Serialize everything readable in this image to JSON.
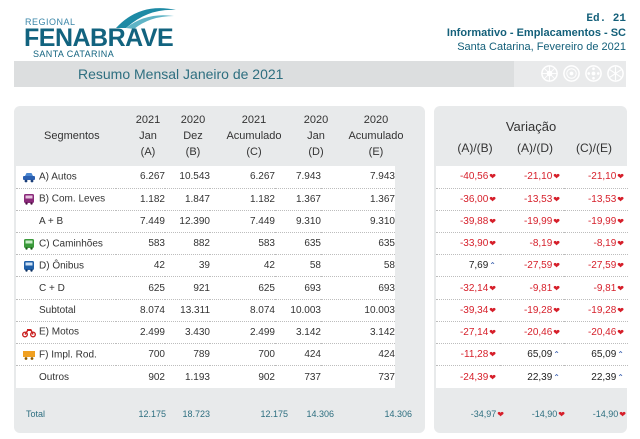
{
  "header": {
    "logo_regional": "REGIONAL",
    "logo_brand": "FENABRAVE",
    "logo_state": "SANTA CATARINA",
    "edition": "Ed. 21",
    "info": "Informativo - Emplacamentos - SC",
    "date": "Santa Catarina, Fevereiro de 2021",
    "brand_color": "#12637f"
  },
  "band": {
    "title": "Resumo Mensal Janeiro de 2021",
    "icons": [
      "wheel-icon",
      "wheel-icon",
      "wheel-icon",
      "wheel-icon"
    ]
  },
  "table": {
    "segment_header": "Segmentos",
    "columns": [
      {
        "l1": "2021",
        "l2": "Jan",
        "l3": "(A)"
      },
      {
        "l1": "2020",
        "l2": "Dez",
        "l3": "(B)"
      },
      {
        "l1": "2021",
        "l2": "Acumulado",
        "l3": "(C)"
      },
      {
        "l1": "2020",
        "l2": "Jan",
        "l3": "(D)"
      },
      {
        "l1": "2020",
        "l2": "Acumulado",
        "l3": "(E)"
      }
    ],
    "variation_title": "Variação",
    "variation_columns": [
      "(A)/(B)",
      "(A)/(D)",
      "(C)/(E)"
    ],
    "rows": [
      {
        "segment": "A) Autos",
        "icon": "car-icon",
        "a": "6.267",
        "b": "10.543",
        "c": "6.267",
        "d": "7.943",
        "e": "7.943",
        "v1": "-40,56",
        "d1": "down",
        "v2": "-21,10",
        "d2": "down",
        "v3": "-21,10",
        "d3": "down"
      },
      {
        "segment": "B) Com. Leves",
        "icon": "van-icon",
        "a": "1.182",
        "b": "1.847",
        "c": "1.182",
        "d": "1.367",
        "e": "1.367",
        "v1": "-36,00",
        "d1": "down",
        "v2": "-13,53",
        "d2": "down",
        "v3": "-13,53",
        "d3": "down"
      },
      {
        "segment": "A + B",
        "icon": "",
        "a": "7.449",
        "b": "12.390",
        "c": "7.449",
        "d": "9.310",
        "e": "9.310",
        "v1": "-39,88",
        "d1": "down",
        "v2": "-19,99",
        "d2": "down",
        "v3": "-19,99",
        "d3": "down"
      },
      {
        "segment": "C) Caminhões",
        "icon": "truck-icon",
        "a": "583",
        "b": "882",
        "c": "583",
        "d": "635",
        "e": "635",
        "v1": "-33,90",
        "d1": "down",
        "v2": "-8,19",
        "d2": "down",
        "v3": "-8,19",
        "d3": "down"
      },
      {
        "segment": "D) Ônibus",
        "icon": "bus-icon",
        "a": "42",
        "b": "39",
        "c": "42",
        "d": "58",
        "e": "58",
        "v1": "7,69",
        "d1": "up",
        "v2": "-27,59",
        "d2": "down",
        "v3": "-27,59",
        "d3": "down"
      },
      {
        "segment": "C + D",
        "icon": "",
        "a": "625",
        "b": "921",
        "c": "625",
        "d": "693",
        "e": "693",
        "v1": "-32,14",
        "d1": "down",
        "v2": "-9,81",
        "d2": "down",
        "v3": "-9,81",
        "d3": "down"
      },
      {
        "segment": "Subtotal",
        "icon": "",
        "a": "8.074",
        "b": "13.311",
        "c": "8.074",
        "d": "10.003",
        "e": "10.003",
        "v1": "-39,34",
        "d1": "down",
        "v2": "-19,28",
        "d2": "down",
        "v3": "-19,28",
        "d3": "down"
      },
      {
        "segment": "E) Motos",
        "icon": "motorcycle-icon",
        "a": "2.499",
        "b": "3.430",
        "c": "2.499",
        "d": "3.142",
        "e": "3.142",
        "v1": "-27,14",
        "d1": "down",
        "v2": "-20,46",
        "d2": "down",
        "v3": "-20,46",
        "d3": "down"
      },
      {
        "segment": "F) Impl. Rod.",
        "icon": "trailer-icon",
        "a": "700",
        "b": "789",
        "c": "700",
        "d": "424",
        "e": "424",
        "v1": "-11,28",
        "d1": "down",
        "v2": "65,09",
        "d2": "up",
        "v3": "65,09",
        "d3": "up"
      },
      {
        "segment": "Outros",
        "icon": "",
        "a": "902",
        "b": "1.193",
        "c": "902",
        "d": "737",
        "e": "737",
        "v1": "-24,39",
        "d1": "down",
        "v2": "22,39",
        "d2": "up",
        "v3": "22,39",
        "d3": "up"
      }
    ],
    "total": {
      "segment": "Total",
      "a": "12.175",
      "b": "18.723",
      "c": "12.175",
      "d": "14.306",
      "e": "14.306",
      "v1": "-34,97",
      "d1": "down",
      "v2": "-14,90",
      "d2": "down",
      "v3": "-14,90",
      "d3": "down"
    }
  },
  "colors": {
    "negative": "#d61f2a",
    "positive_arrow": "#2a52a8",
    "accent": "#2e6f80"
  }
}
